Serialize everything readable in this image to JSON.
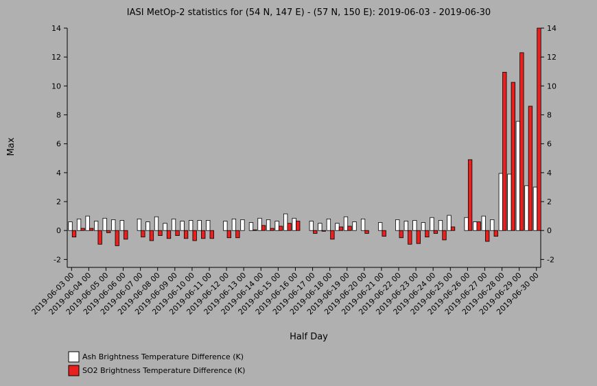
{
  "chart_data": {
    "type": "bar",
    "title": "IASI MetOp-2 statistics for (54 N, 147 E) - (57 N, 150 E): 2019-06-03 - 2019-06-30",
    "x_label": "Half Day",
    "y_label": "Max",
    "categories": [
      "2019-06-03 00",
      null,
      "2019-06-04 00",
      null,
      "2019-06-05 00",
      null,
      "2019-06-06 00",
      null,
      "2019-06-07 00",
      null,
      "2019-06-08 00",
      null,
      "2019-06-09 00",
      null,
      "2019-06-10 00",
      null,
      "2019-06-11 00",
      null,
      "2019-06-12 00",
      null,
      "2019-06-13 00",
      null,
      "2019-06-14 00",
      null,
      "2019-06-15 00",
      null,
      "2019-06-16 00",
      null,
      "2019-06-17 00",
      null,
      "2019-06-18 00",
      null,
      "2019-06-19 00",
      null,
      "2019-06-20 00",
      null,
      "2019-06-21 00",
      null,
      "2019-06-22 00",
      null,
      "2019-06-23 00",
      null,
      "2019-06-24 00",
      null,
      "2019-06-25 00",
      null,
      "2019-06-26 00",
      null,
      "2019-06-27 00",
      null,
      "2019-06-28 00",
      null,
      "2019-06-29 00",
      null,
      "2019-06-30 00"
    ],
    "series": [
      {
        "name": "Ash Brightness Temperature Difference (K)",
        "color": "#ffffff",
        "values": [
          0.6,
          0.8,
          1.0,
          0.65,
          0.85,
          0.75,
          0.7,
          null,
          0.8,
          0.6,
          0.95,
          0.5,
          0.8,
          0.65,
          0.7,
          0.7,
          0.7,
          null,
          0.65,
          0.8,
          0.75,
          0.55,
          0.85,
          0.75,
          0.65,
          1.15,
          0.85,
          null,
          0.65,
          0.5,
          0.8,
          0.5,
          0.95,
          0.6,
          0.8,
          null,
          0.55,
          null,
          0.75,
          0.65,
          0.7,
          0.55,
          0.9,
          0.7,
          1.05,
          null,
          0.9,
          0.6,
          1.0,
          0.75,
          3.95,
          3.9,
          7.55,
          3.1,
          3.0
        ]
      },
      {
        "name": "SO2 Brightness Temperature Difference (K)",
        "color": "#e8201e",
        "values": [
          -0.45,
          0.15,
          0.15,
          -0.95,
          -0.15,
          -1.05,
          -0.6,
          null,
          -0.45,
          -0.7,
          -0.35,
          -0.55,
          -0.35,
          -0.55,
          -0.7,
          -0.55,
          -0.55,
          null,
          -0.5,
          -0.5,
          0.0,
          0.05,
          0.35,
          0.15,
          0.3,
          0.5,
          0.65,
          null,
          -0.2,
          -0.05,
          -0.6,
          0.25,
          0.3,
          0.0,
          -0.2,
          null,
          -0.4,
          null,
          -0.5,
          -0.95,
          -0.9,
          -0.45,
          -0.2,
          -0.65,
          0.25,
          null,
          4.9,
          0.6,
          -0.75,
          -0.4,
          10.95,
          10.25,
          12.3,
          8.6,
          14.0
        ]
      }
    ],
    "ylim": [
      -2.55,
      14
    ],
    "yticks": [
      -2,
      0,
      2,
      4,
      6,
      8,
      10,
      12,
      14
    ]
  }
}
